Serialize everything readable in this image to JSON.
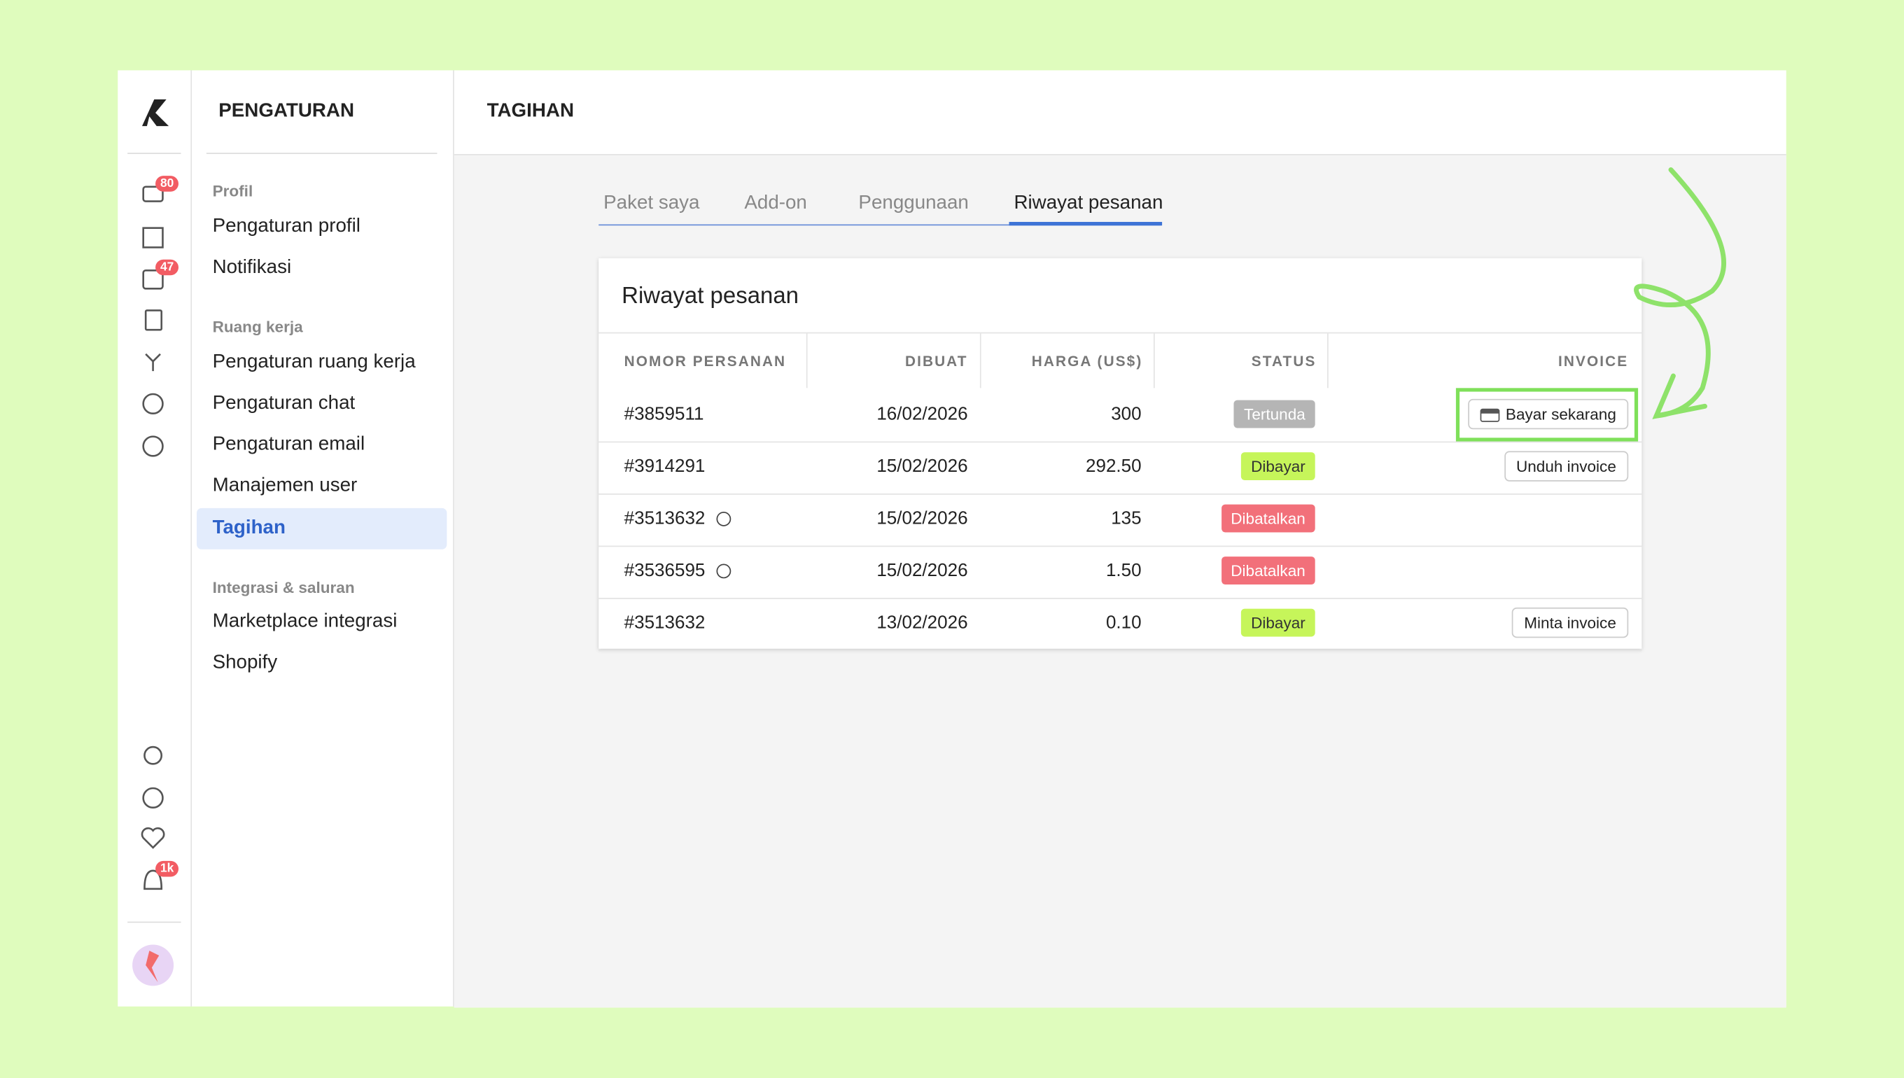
{
  "sidebar": {
    "badges": [
      "80",
      "47",
      "1k"
    ]
  },
  "settings": {
    "title": "PENGATURAN",
    "sections": [
      {
        "heading": "Profil",
        "items": [
          "Pengaturan profil",
          "Notifikasi"
        ]
      },
      {
        "heading": "Ruang kerja",
        "items": [
          "Pengaturan ruang kerja",
          "Pengaturan chat",
          "Pengaturan email",
          "Manajemen user",
          "Tagihan"
        ]
      },
      {
        "heading": "Integrasi & saluran",
        "items": [
          "Marketplace integrasi",
          "Shopify"
        ]
      }
    ]
  },
  "header": {
    "title": "TAGIHAN"
  },
  "tabs": [
    "Paket saya",
    "Add-on",
    "Penggunaan",
    "Riwayat pesanan"
  ],
  "card": {
    "title": "Riwayat pesanan"
  },
  "table": {
    "columns": [
      "NOMOR PERSANAN",
      "DIBUAT",
      "HARGA (US$)",
      "STATUS",
      "INVOICE"
    ],
    "rows": [
      {
        "order": "#3859511",
        "created": "16/02/2026",
        "price": "300",
        "status": "Tertunda",
        "status_color": "#b5b5b5",
        "invoice": "Bayar sekarang"
      },
      {
        "order": "#3914291",
        "created": "15/02/2026",
        "price": "292.50",
        "status": "Dibayar",
        "status_color": "#c6f55a",
        "invoice": "Unduh invoice"
      },
      {
        "order": "#3513632",
        "created": "15/02/2026",
        "price": "135",
        "status": "Dibatalkan",
        "status_color": "#f2707a"
      },
      {
        "order": "#3536595",
        "created": "15/02/2026",
        "price": "1.50",
        "status": "Dibatalkan",
        "status_color": "#f2707a"
      },
      {
        "order": "#3513632",
        "created": "13/02/2026",
        "price": "0.10",
        "status": "Dibayar",
        "status_color": "#c6f55a",
        "invoice": "Minta invoice"
      }
    ]
  }
}
